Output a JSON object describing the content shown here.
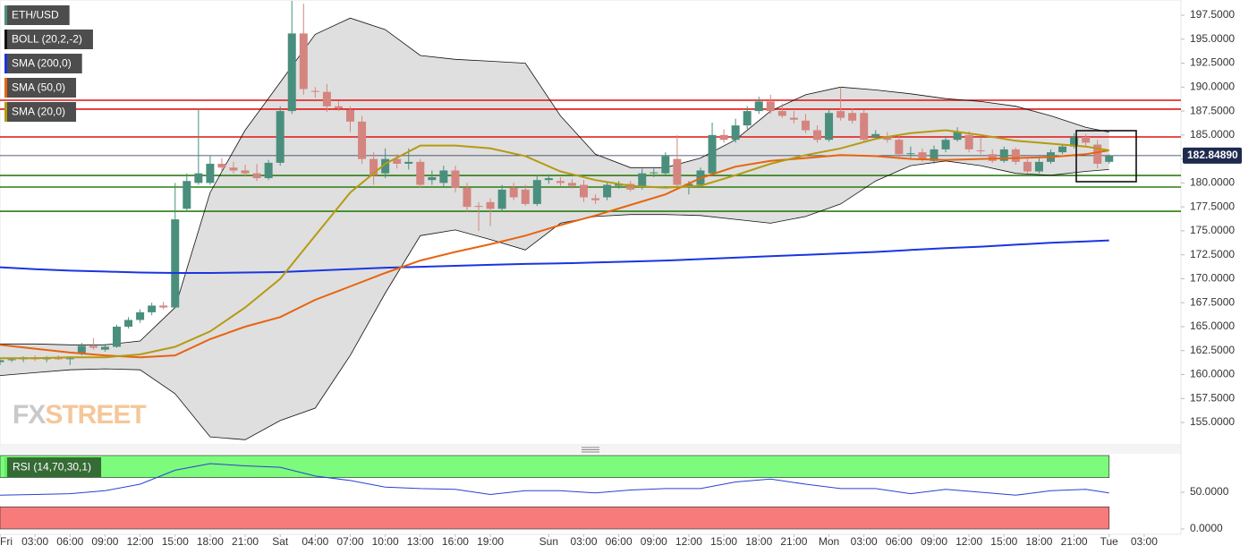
{
  "chart_data": [
    {
      "type": "candlestick",
      "xlim": [
        0,
        101.15
      ],
      "ylim": [
        152.67,
        199.09
      ],
      "yticks": [
        {
          "value": 155,
          "label": "155.0000"
        },
        {
          "value": 157.5,
          "label": "157.5000"
        },
        {
          "value": 160,
          "label": "160.0000"
        },
        {
          "value": 162.5,
          "label": "162.5000"
        },
        {
          "value": 165,
          "label": "165.0000"
        },
        {
          "value": 167.5,
          "label": "167.5000"
        },
        {
          "value": 170,
          "label": "170.0000"
        },
        {
          "value": 172.5,
          "label": "172.5000"
        },
        {
          "value": 175,
          "label": "175.0000"
        },
        {
          "value": 177.5,
          "label": "177.5000"
        },
        {
          "value": 180,
          "label": "180.0000"
        },
        {
          "value": 182.5,
          "label": "182.5000"
        },
        {
          "value": 185,
          "label": "185.0000"
        },
        {
          "value": 187.5,
          "label": "187.5000"
        },
        {
          "value": 190,
          "label": "190.0000"
        },
        {
          "value": 192.5,
          "label": "192.5000"
        },
        {
          "value": 195,
          "label": "195.0000"
        },
        {
          "value": 197.5,
          "label": "197.5000"
        }
      ],
      "x": [
        0,
        1,
        2,
        3,
        4,
        5,
        6,
        7,
        8,
        9,
        10,
        11,
        12,
        13,
        14,
        15,
        16,
        17,
        18,
        19,
        20,
        21,
        22,
        23,
        24,
        25,
        26,
        27,
        28,
        29,
        30,
        31,
        32,
        33,
        34,
        35,
        36,
        37,
        38,
        39,
        40,
        41,
        42,
        43,
        44,
        45,
        46,
        47,
        48,
        49,
        50,
        51,
        52,
        53,
        54,
        55,
        56,
        57,
        58,
        59,
        60,
        61,
        62,
        63,
        64,
        65,
        66,
        67,
        68,
        69,
        70,
        71,
        72,
        73,
        74,
        75,
        76,
        77,
        78,
        79,
        80,
        81,
        82,
        83,
        84,
        85,
        86,
        87,
        88,
        89,
        90,
        91,
        92,
        93,
        94,
        95
      ],
      "series": [
        {
          "name": "ETH/USD",
          "color": "#4a8f7d",
          "down_color": "#d4857f",
          "open": [
            161.3,
            161.5,
            161.6,
            161.8,
            161.6,
            161.8,
            161.6,
            162.2,
            163.0,
            162.6,
            162.9,
            165.0,
            165.7,
            166.5,
            167.2,
            167.0,
            177.3,
            180.0,
            180.0,
            182.0,
            181.6,
            181.3,
            181.0,
            180.5,
            182.1,
            187.5,
            195.6,
            189.6,
            189.5,
            188.0,
            187.6,
            186.4,
            182.5,
            181.0,
            182.5,
            182.0,
            182.2,
            180.3,
            180.0,
            181.3,
            179.5,
            177.6,
            178.0,
            177.3,
            179.5,
            179.3,
            177.8,
            180.3,
            180.2,
            180.0,
            179.8,
            178.4,
            178.5,
            179.7,
            179.9,
            179.5,
            181.0,
            181.0,
            182.5,
            179.6,
            179.8,
            181.0,
            185.0,
            184.5,
            186.0,
            187.5,
            188.5,
            187.5,
            186.8,
            186.5,
            185.5,
            184.5,
            187.5,
            187.3,
            187.3,
            184.8,
            184.8,
            184.5,
            183.0,
            183.2,
            182.3,
            183.5,
            184.5,
            185.0,
            183.4,
            183.0,
            182.3,
            183.5,
            182.2,
            181.2,
            182.2,
            183.2,
            183.8,
            184.8,
            184.0,
            182.2
          ],
          "high": [
            161.6,
            161.8,
            161.9,
            162.0,
            161.9,
            162.0,
            161.9,
            163.3,
            163.8,
            163.2,
            165.2,
            166.0,
            166.8,
            167.5,
            167.6,
            180.0,
            181.0,
            187.8,
            182.8,
            182.6,
            182.2,
            181.9,
            182.0,
            182.4,
            188.0,
            199.0,
            198.7,
            190.0,
            190.3,
            188.5,
            188.0,
            187.0,
            183.2,
            183.6,
            183.0,
            183.6,
            182.5,
            181.3,
            181.8,
            181.8,
            180.0,
            178.0,
            178.4,
            179.8,
            180.0,
            179.8,
            180.8,
            180.9,
            180.6,
            180.4,
            180.3,
            178.8,
            180.1,
            180.2,
            180.2,
            181.5,
            181.5,
            183.2,
            185.0,
            180.2,
            181.6,
            186.3,
            185.6,
            186.7,
            188.0,
            189.0,
            189.2,
            188.3,
            187.5,
            187.2,
            186.0,
            187.8,
            190.0,
            187.8,
            187.6,
            185.5,
            185.3,
            184.9,
            183.8,
            183.6,
            183.9,
            184.8,
            185.8,
            185.4,
            184.8,
            183.5,
            183.8,
            183.7,
            182.5,
            182.6,
            183.5,
            184.0,
            185.2,
            185.1,
            184.5,
            183.0
          ],
          "low": [
            161.0,
            161.3,
            161.3,
            161.4,
            161.3,
            161.5,
            161.0,
            162.0,
            162.6,
            162.4,
            162.8,
            164.8,
            165.4,
            166.2,
            166.8,
            167.0,
            177.0,
            179.8,
            179.8,
            181.2,
            181.0,
            180.7,
            180.2,
            180.3,
            181.8,
            187.2,
            189.2,
            188.9,
            187.4,
            187.5,
            185.3,
            182.0,
            179.8,
            180.5,
            181.5,
            181.4,
            179.5,
            179.8,
            179.6,
            179.0,
            177.0,
            175.0,
            175.5,
            177.0,
            178.2,
            177.6,
            177.6,
            179.9,
            179.6,
            179.4,
            178.0,
            177.8,
            178.2,
            179.4,
            179.1,
            179.3,
            180.6,
            180.8,
            179.5,
            178.8,
            179.5,
            180.8,
            184.2,
            184.2,
            185.6,
            187.2,
            187.2,
            186.8,
            186.2,
            185.2,
            184.2,
            184.3,
            186.5,
            186.2,
            184.2,
            184.5,
            184.2,
            182.5,
            182.6,
            182.2,
            182.0,
            183.2,
            184.3,
            183.2,
            183.0,
            182.1,
            182.1,
            181.9,
            181.0,
            181.0,
            182.0,
            183.0,
            183.6,
            183.9,
            181.5,
            182.0
          ],
          "close": [
            161.5,
            161.6,
            161.8,
            161.6,
            161.8,
            161.6,
            161.7,
            163.0,
            162.8,
            162.9,
            165.0,
            165.7,
            166.5,
            167.2,
            167.0,
            176.2,
            180.2,
            181.0,
            182.0,
            181.6,
            181.3,
            181.0,
            180.5,
            182.1,
            187.5,
            195.6,
            189.8,
            189.5,
            188.0,
            187.8,
            186.4,
            182.5,
            180.8,
            182.5,
            182.0,
            182.2,
            179.8,
            180.6,
            181.3,
            179.5,
            177.5,
            177.5,
            177.3,
            179.3,
            178.5,
            177.8,
            180.3,
            180.5,
            180.0,
            179.7,
            178.5,
            178.2,
            179.8,
            179.9,
            179.3,
            181.0,
            181.1,
            182.8,
            179.8,
            179.9,
            181.3,
            185.0,
            184.5,
            186.0,
            187.5,
            188.5,
            187.5,
            187.0,
            186.6,
            185.5,
            184.5,
            187.3,
            186.8,
            186.5,
            184.5,
            185.1,
            184.5,
            183.0,
            183.1,
            182.5,
            183.5,
            184.5,
            185.3,
            183.5,
            183.3,
            182.3,
            183.5,
            182.2,
            181.2,
            182.2,
            183.2,
            183.8,
            184.8,
            184.2,
            182.0,
            182.85
          ]
        }
      ],
      "line_x": [
        0,
        3,
        6,
        9,
        12,
        15,
        18,
        21,
        24,
        27,
        30,
        33,
        36,
        39,
        42,
        45,
        48,
        51,
        54,
        57,
        60,
        63,
        66,
        69,
        72,
        75,
        78,
        81,
        84,
        87,
        90,
        93,
        95
      ],
      "overlays": [
        {
          "name": "BOLL (20,2,-2)",
          "color": "#111111",
          "fill": "#dcdcdc",
          "upper": [
            163.2,
            163.2,
            163.1,
            163.1,
            163.5,
            167.0,
            179.0,
            185.5,
            190.5,
            195.5,
            197.2,
            196.0,
            193.3,
            192.9,
            192.7,
            192.5,
            187.0,
            183.0,
            181.6,
            181.6,
            182.6,
            184.5,
            187.5,
            189.2,
            190.0,
            189.7,
            189.3,
            188.8,
            188.5,
            188.0,
            187.0,
            185.8,
            185.3
          ],
          "lower": [
            159.9,
            160.2,
            160.5,
            160.6,
            160.5,
            158.0,
            153.5,
            153.2,
            155.2,
            156.5,
            162.0,
            168.5,
            174.5,
            175.1,
            174.1,
            173.0,
            175.8,
            176.5,
            176.7,
            176.7,
            176.6,
            176.2,
            175.8,
            176.5,
            177.8,
            180.2,
            181.8,
            182.3,
            181.8,
            181.0,
            180.8,
            181.2,
            181.4
          ]
        },
        {
          "name": "SMA (200,0)",
          "color": "#1a35e0",
          "values": [
            171.2,
            171.0,
            170.85,
            170.75,
            170.65,
            170.6,
            170.6,
            170.65,
            170.7,
            170.85,
            171.0,
            171.15,
            171.25,
            171.35,
            171.45,
            171.55,
            171.6,
            171.7,
            171.8,
            171.9,
            172.05,
            172.2,
            172.35,
            172.5,
            172.65,
            172.8,
            173.0,
            173.2,
            173.35,
            173.55,
            173.75,
            173.9,
            174.0
          ]
        },
        {
          "name": "SMA (50,0)",
          "color": "#e8630f",
          "values": [
            163.1,
            162.7,
            162.3,
            162.0,
            161.8,
            162.0,
            163.7,
            165.0,
            166.0,
            167.8,
            169.2,
            170.6,
            171.9,
            172.8,
            173.6,
            174.5,
            175.6,
            176.6,
            177.7,
            178.8,
            180.5,
            181.7,
            182.3,
            182.6,
            182.9,
            182.8,
            182.5,
            182.4,
            182.5,
            182.6,
            182.7,
            183.0,
            183.4
          ]
        },
        {
          "name": "SMA (20,0)",
          "color": "#b59a12",
          "values": [
            161.7,
            161.7,
            161.8,
            161.8,
            162.1,
            162.9,
            164.5,
            167.0,
            170.0,
            174.5,
            179.0,
            182.0,
            183.9,
            183.9,
            183.6,
            182.8,
            181.2,
            180.3,
            179.7,
            179.5,
            179.7,
            180.8,
            182.0,
            182.9,
            183.6,
            184.6,
            185.2,
            185.5,
            185.0,
            184.4,
            184.1,
            183.8,
            183.4
          ]
        }
      ],
      "levels": [
        {
          "value": 188.63,
          "color": "#e01414"
        },
        {
          "value": 187.7,
          "color": "#e01414"
        },
        {
          "value": 184.8,
          "color": "#e01414"
        },
        {
          "value": 180.78,
          "color": "#2f7d12"
        },
        {
          "value": 179.57,
          "color": "#2f7d12"
        },
        {
          "value": 177.04,
          "color": "#2f7d12"
        }
      ],
      "last_price": {
        "value": 182.8489,
        "label": "182.84890",
        "color": "#1f2b4e"
      },
      "watermark": [
        "FX",
        "STREET"
      ]
    },
    {
      "type": "line",
      "name": "RSI (14,70,30,1)",
      "color": "#2b3fd6",
      "xlim": [
        0,
        101.15
      ],
      "ylim": [
        -7.3,
        102.4
      ],
      "yticks": [
        {
          "value": 50,
          "label": "50.0000"
        },
        {
          "value": 0,
          "label": "0.0000"
        }
      ],
      "bands": [
        {
          "from": 70,
          "to": 100,
          "color": "#7dfb7d"
        },
        {
          "from": 0,
          "to": 30,
          "color": "#f77b7b"
        }
      ],
      "x": [
        0,
        3,
        6,
        9,
        12,
        15,
        18,
        21,
        24,
        27,
        30,
        33,
        36,
        39,
        42,
        45,
        48,
        51,
        54,
        57,
        60,
        63,
        66,
        69,
        72,
        75,
        78,
        81,
        84,
        87,
        90,
        93,
        95
      ],
      "values": [
        46,
        47,
        48,
        52,
        61,
        80,
        89,
        86,
        84,
        72,
        66,
        57,
        55,
        54,
        47,
        52,
        52,
        49,
        53,
        55,
        55,
        64,
        68,
        61,
        55,
        55,
        48,
        54,
        50,
        46,
        52,
        54,
        49
      ],
      "xticks": [
        {
          "value": 0,
          "label": "Fri"
        },
        {
          "value": 3,
          "label": "03:00"
        },
        {
          "value": 6,
          "label": "06:00"
        },
        {
          "value": 9,
          "label": "09:00"
        },
        {
          "value": 12,
          "label": "12:00"
        },
        {
          "value": 15,
          "label": "15:00"
        },
        {
          "value": 18,
          "label": "18:00"
        },
        {
          "value": 21,
          "label": "21:00"
        },
        {
          "value": 24,
          "label": "Sat"
        },
        {
          "value": 27,
          "label": "04:00"
        },
        {
          "value": 30,
          "label": "07:00"
        },
        {
          "value": 33,
          "label": "10:00"
        },
        {
          "value": 36,
          "label": "13:00"
        },
        {
          "value": 39,
          "label": "16:00"
        },
        {
          "value": 42,
          "label": "19:00"
        },
        {
          "value": 47,
          "label": "Sun"
        },
        {
          "value": 50,
          "label": "03:00"
        },
        {
          "value": 53,
          "label": "06:00"
        },
        {
          "value": 56,
          "label": "09:00"
        },
        {
          "value": 59,
          "label": "12:00"
        },
        {
          "value": 62,
          "label": "15:00"
        },
        {
          "value": 65,
          "label": "18:00"
        },
        {
          "value": 68,
          "label": "21:00"
        },
        {
          "value": 71,
          "label": "Mon"
        },
        {
          "value": 74,
          "label": "03:00"
        },
        {
          "value": 77,
          "label": "06:00"
        },
        {
          "value": 80,
          "label": "09:00"
        },
        {
          "value": 83,
          "label": "12:00"
        },
        {
          "value": 86,
          "label": "15:00"
        },
        {
          "value": 89,
          "label": "18:00"
        },
        {
          "value": 92,
          "label": "21:00"
        },
        {
          "value": 95,
          "label": "Tue"
        },
        {
          "value": 98,
          "label": "03:00"
        }
      ]
    }
  ]
}
